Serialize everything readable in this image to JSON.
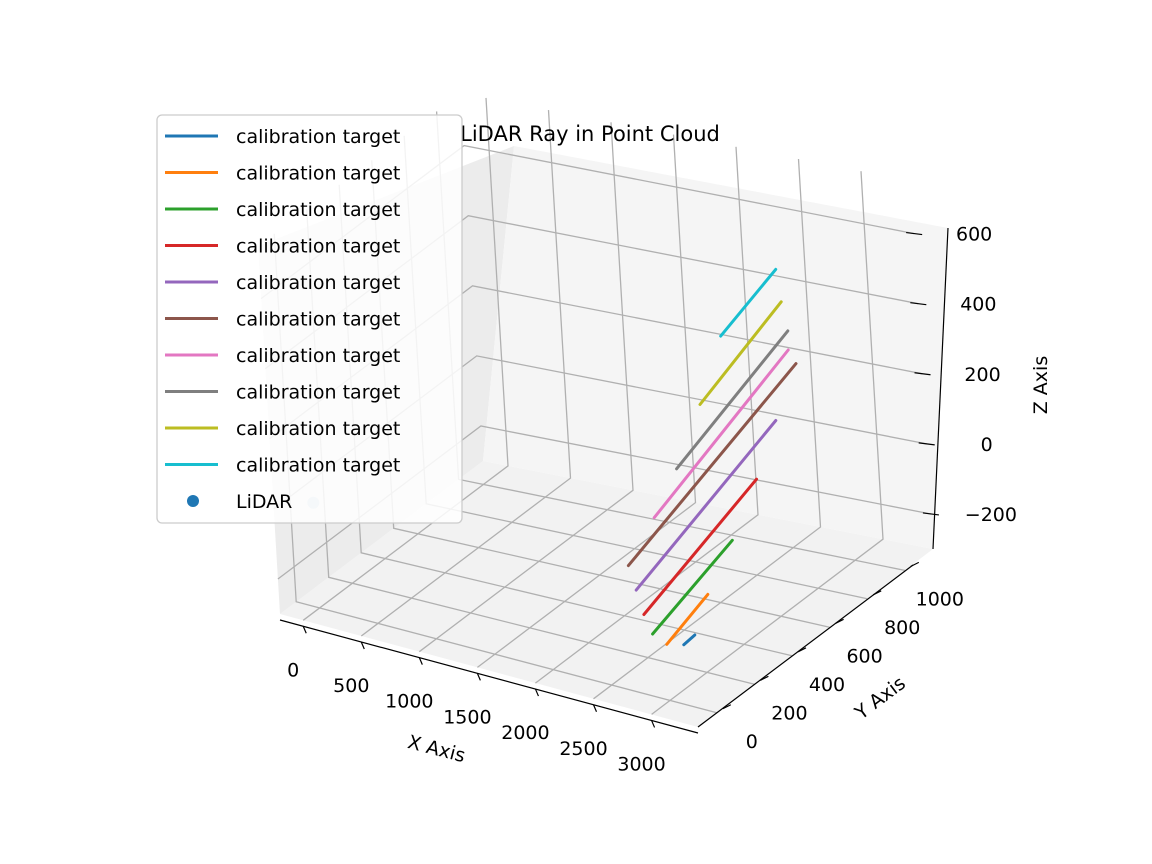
{
  "chart_data": {
    "type": "line",
    "projection": "3d",
    "title": "LiDAR Ray in Point Cloud",
    "xlabel": "X Axis",
    "ylabel": "Y Axis",
    "zlabel": "Z Axis",
    "xlim": [
      -200,
      3400
    ],
    "ylim": [
      -100,
      1150
    ],
    "zlim": [
      -300,
      750
    ],
    "x_ticks": [
      0,
      500,
      1000,
      1500,
      2000,
      2500,
      3000
    ],
    "x_tick_labels": [
      "0",
      "500",
      "1000",
      "1500",
      "2000",
      "2500",
      "3000"
    ],
    "y_ticks": [
      0,
      200,
      400,
      600,
      800,
      1000
    ],
    "y_tick_labels": [
      "0",
      "200",
      "400",
      "600",
      "800",
      "1000"
    ],
    "z_ticks": [
      -200,
      0,
      200,
      400,
      600
    ],
    "z_tick_labels": [
      "−200",
      "0",
      "200",
      "400",
      "600"
    ],
    "grid": true,
    "legend_position": "upper-left",
    "series": [
      {
        "name": "calibration target",
        "color": "#1f77b4",
        "kind": "line",
        "points": [
          [
            2650,
            300,
            -290
          ],
          [
            2700,
            330,
            -270
          ]
        ]
      },
      {
        "name": "calibration target",
        "color": "#ff7f0e",
        "kind": "line",
        "points": [
          [
            2570,
            260,
            -280
          ],
          [
            2750,
            380,
            -170
          ]
        ]
      },
      {
        "name": "calibration target",
        "color": "#2ca02c",
        "kind": "line",
        "points": [
          [
            2470,
            250,
            -255
          ],
          [
            2790,
            500,
            -60
          ]
        ]
      },
      {
        "name": "calibration target",
        "color": "#d62728",
        "kind": "line",
        "points": [
          [
            2390,
            260,
            -210
          ],
          [
            2830,
            620,
            70
          ]
        ]
      },
      {
        "name": "calibration target",
        "color": "#9467bd",
        "kind": "line",
        "points": [
          [
            2320,
            270,
            -150
          ],
          [
            2860,
            720,
            200
          ]
        ]
      },
      {
        "name": "calibration target",
        "color": "#8c564b",
        "kind": "line",
        "points": [
          [
            2250,
            280,
            -90
          ],
          [
            2880,
            830,
            320
          ]
        ]
      },
      {
        "name": "calibration target",
        "color": "#e377c2",
        "kind": "line",
        "points": [
          [
            2350,
            370,
            20
          ],
          [
            2870,
            800,
            370
          ]
        ]
      },
      {
        "name": "calibration target",
        "color": "#7f7f7f",
        "kind": "line",
        "points": [
          [
            2420,
            460,
            130
          ],
          [
            2860,
            810,
            420
          ]
        ]
      },
      {
        "name": "calibration target",
        "color": "#bcbd22",
        "kind": "line",
        "points": [
          [
            2490,
            560,
            280
          ],
          [
            2820,
            810,
            500
          ]
        ]
      },
      {
        "name": "calibration target",
        "color": "#17becf",
        "kind": "line",
        "points": [
          [
            2570,
            640,
            450
          ],
          [
            2790,
            810,
            590
          ]
        ]
      },
      {
        "name": "LiDAR",
        "color": "#1f77b4",
        "kind": "scatter",
        "points": [
          [
            0,
            0,
            0
          ]
        ]
      }
    ]
  }
}
